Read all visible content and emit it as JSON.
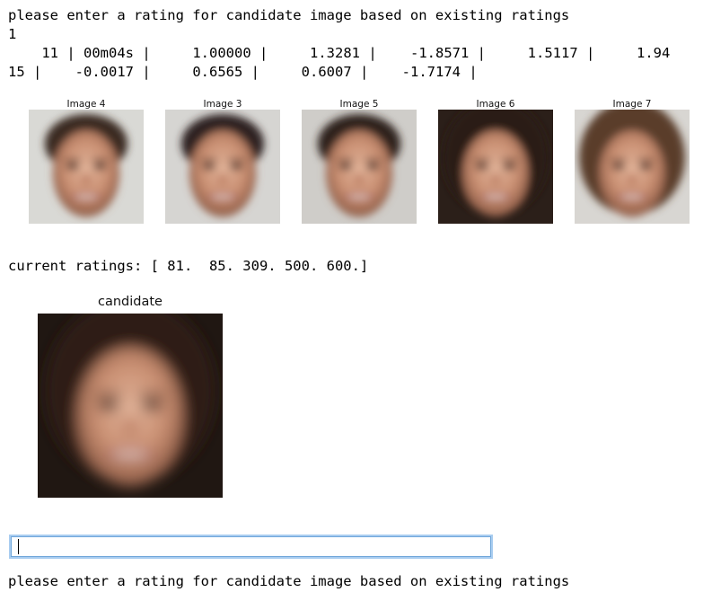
{
  "console": {
    "prompt_top": "please enter a rating for candidate image based on existing ratings",
    "line_one": "1",
    "progress_row1": [
      {
        "text": "    11 ",
        "bar": true
      },
      {
        "text": " 00m04s ",
        "bar": true
      },
      {
        "text": "     1.00000 ",
        "bar": true
      },
      {
        "text": "     1.3281 ",
        "bar": true
      },
      {
        "text": "    -1.8571 ",
        "bar": true
      },
      {
        "text": "     1.5117 ",
        "bar": true
      },
      {
        "text": "     1.94",
        "bar": false
      }
    ],
    "progress_row2": [
      {
        "text": "15 ",
        "bar": true
      },
      {
        "text": "    -0.0017 ",
        "bar": true
      },
      {
        "text": "     0.6565 ",
        "bar": true
      },
      {
        "text": "     0.6007 ",
        "bar": true
      },
      {
        "text": "    -1.7174 ",
        "bar": true
      }
    ],
    "bar_char": "|",
    "current_ratings": "current ratings: [ 81.  85. 309. 500. 600.]",
    "prompt_bottom": "please enter a rating for candidate image based on existing ratings"
  },
  "thumbnails": [
    {
      "label": "Image 4",
      "tone": "male",
      "bg": "#d9d9d5",
      "hair": "#3a2a22"
    },
    {
      "label": "Image 3",
      "tone": "male",
      "bg": "#d6d5d2",
      "hair": "#2f2420"
    },
    {
      "label": "Image 5",
      "tone": "male",
      "bg": "#cfcdc9",
      "hair": "#2e221d"
    },
    {
      "label": "Image 6",
      "tone": "female",
      "bg": "#2b1f19",
      "hair": "#2a1c15"
    },
    {
      "label": "Image 7",
      "tone": "female",
      "bg": "#d8d6d2",
      "hair": "#5a3d2c"
    }
  ],
  "candidate": {
    "label": "candidate",
    "bg": "#201712",
    "hair": "#2d1f17"
  },
  "rating_input": {
    "value": "",
    "placeholder": ""
  }
}
